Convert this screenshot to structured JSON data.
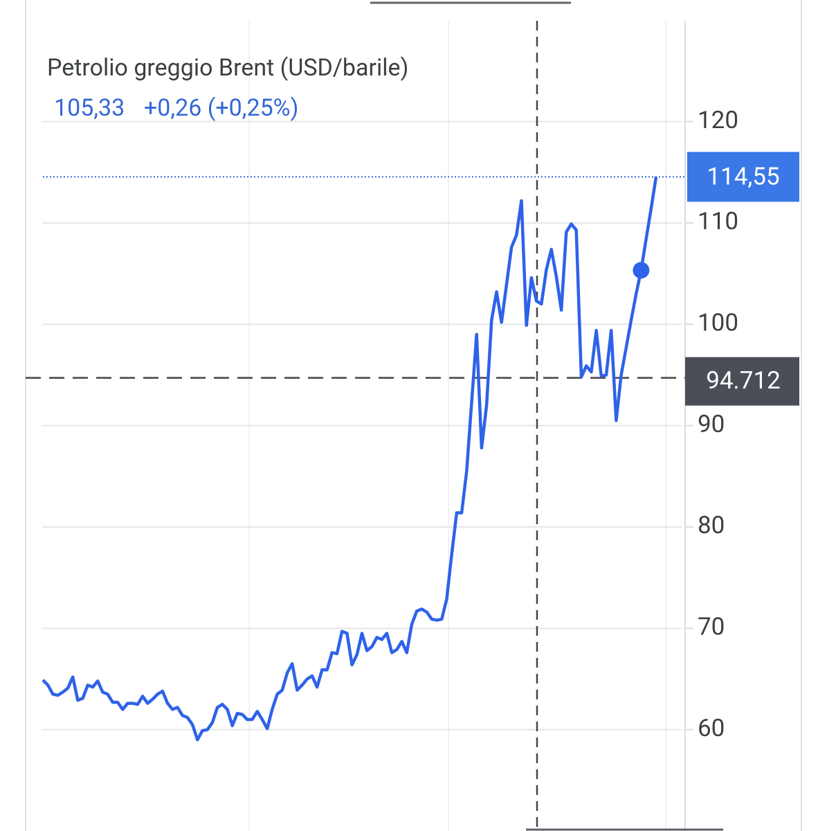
{
  "chart_data": {
    "type": "line",
    "title": "Petrolio greggio Brent (USD/barile)",
    "current": {
      "value": 105.33,
      "label": "105,33"
    },
    "change": "+0,26 (+0,25%)",
    "color": "#2e62e8",
    "values": [
      64.9,
      64.4,
      63.5,
      63.4,
      63.7,
      64.1,
      65.2,
      62.9,
      63.1,
      64.4,
      64.2,
      64.8,
      63.7,
      63.5,
      62.7,
      62.7,
      62.0,
      62.6,
      62.6,
      62.5,
      63.3,
      62.6,
      63.0,
      63.5,
      63.8,
      62.6,
      62.0,
      62.2,
      61.4,
      61.2,
      60.5,
      59.0,
      59.9,
      60.0,
      60.7,
      62.2,
      62.5,
      62.0,
      60.4,
      61.6,
      61.5,
      61.0,
      61.0,
      61.8,
      61.0,
      60.1,
      62.0,
      63.5,
      63.9,
      65.6,
      66.5,
      63.9,
      64.4,
      65.0,
      65.3,
      64.2,
      65.9,
      65.9,
      67.6,
      67.5,
      69.7,
      69.5,
      66.4,
      67.4,
      69.5,
      67.8,
      68.2,
      69.1,
      68.9,
      69.5,
      67.6,
      67.9,
      68.7,
      67.6,
      70.4,
      71.7,
      71.9,
      71.6,
      70.9,
      70.8,
      70.9,
      72.9,
      77.3,
      81.4,
      81.4,
      85.5,
      92.3,
      99.0,
      87.8,
      92.0,
      100.4,
      103.2,
      100.2,
      103.9,
      107.6,
      108.8,
      112.2,
      99.9,
      104.6,
      102.3,
      102.0,
      105.4,
      107.4,
      104.7,
      101.4,
      109.1,
      109.9,
      109.3,
      94.8,
      95.9,
      95.3,
      99.4,
      94.9,
      95.0,
      99.4,
      90.5,
      95.0,
      97.7,
      100.4,
      103.0,
      105.33,
      108.4,
      111.4,
      114.55
    ],
    "last": {
      "value": 114.55,
      "label": "114,55"
    },
    "crosshair": {
      "value": 94.712,
      "label": "94.712"
    },
    "ylim": [
      50,
      132
    ],
    "yticks": [
      60,
      70,
      80,
      90,
      100,
      110,
      120
    ],
    "grid": true
  }
}
